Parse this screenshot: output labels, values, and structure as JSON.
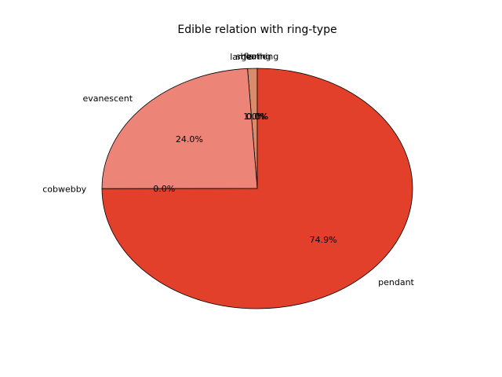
{
  "chart_data": {
    "type": "pie",
    "title": "Edible relation with ring-type",
    "start_angle_deg": 90,
    "direction": "counterclockwise",
    "edge_color": "#000000",
    "slices": [
      {
        "label": "zone",
        "value": 0.0,
        "pct_label": "0.0%",
        "color": "#e8c0b0"
      },
      {
        "label": "sheathing",
        "value": 0.0,
        "pct_label": "0.0%",
        "color": "#e8a898"
      },
      {
        "label": "flaring",
        "value": 0.0,
        "pct_label": "0.0%",
        "color": "#e89080"
      },
      {
        "label": "large",
        "value": 1.0,
        "pct_label": "1.0%",
        "color": "#d98b6e"
      },
      {
        "label": "evanescent",
        "value": 24.0,
        "pct_label": "24.0%",
        "color": "#ec8478"
      },
      {
        "label": "cobwebby",
        "value": 0.0,
        "pct_label": "0.0%",
        "color": "#e86050"
      },
      {
        "label": "pendant",
        "value": 74.9,
        "pct_label": "74.9%",
        "color": "#e2402b"
      }
    ]
  }
}
